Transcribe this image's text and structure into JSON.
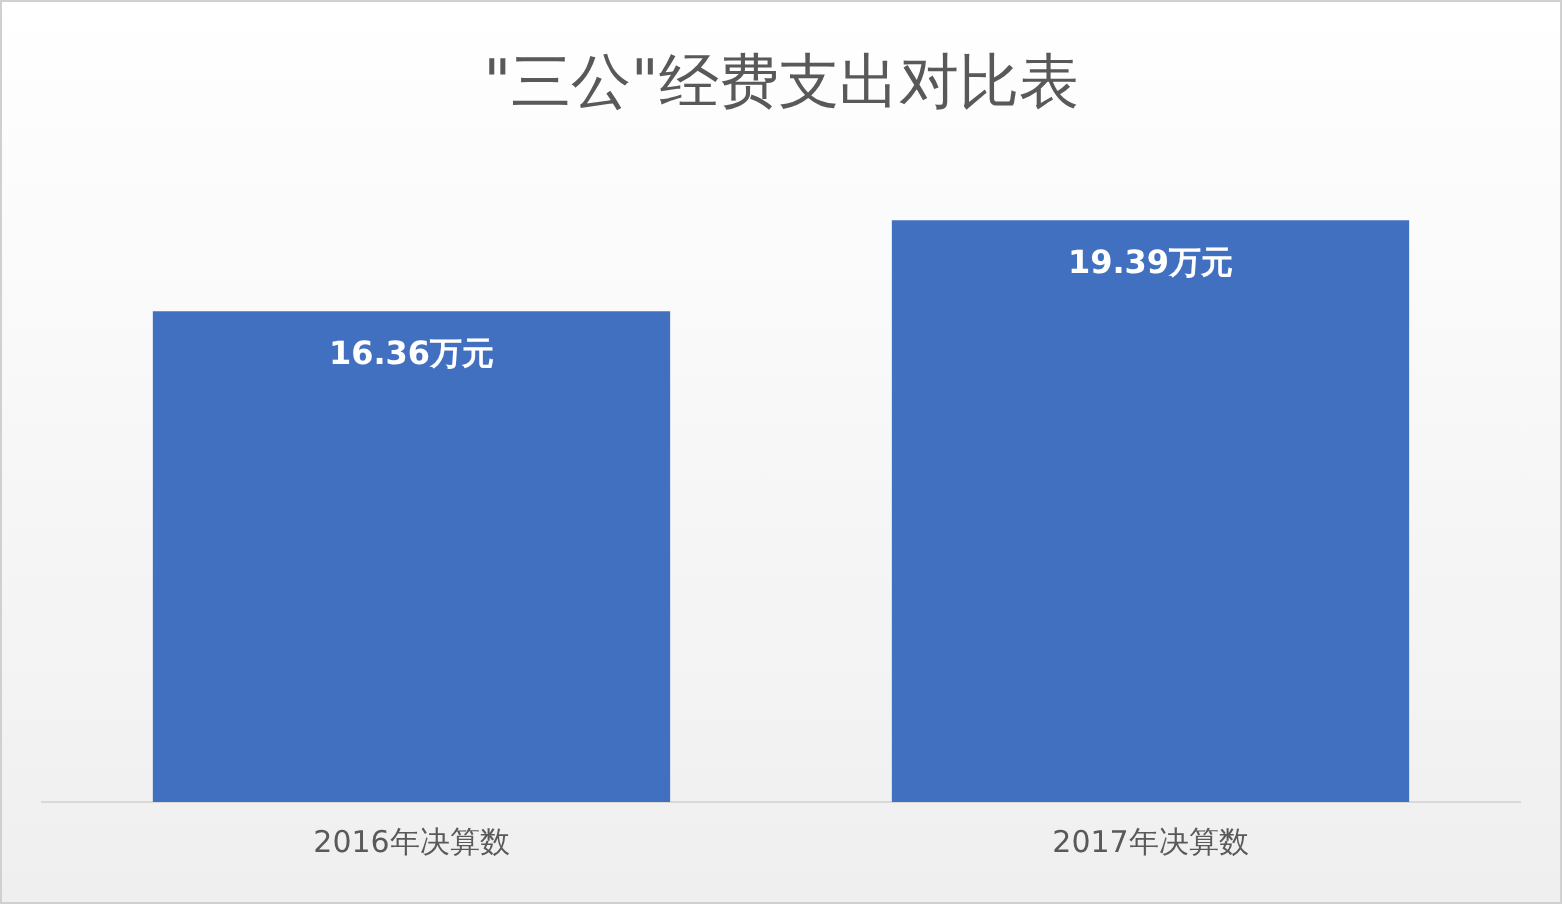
{
  "chart_data": {
    "type": "bar",
    "title": "\"三公\"经费支出对比表",
    "categories": [
      "2016年决算数",
      "2017年决算数"
    ],
    "values": [
      16.36,
      19.39
    ],
    "color": "#4270c0",
    "value_labels": [
      "16.36万元",
      "19.39万元"
    ],
    "tick_labels": "x",
    "grid": false,
    "legend": false
  }
}
